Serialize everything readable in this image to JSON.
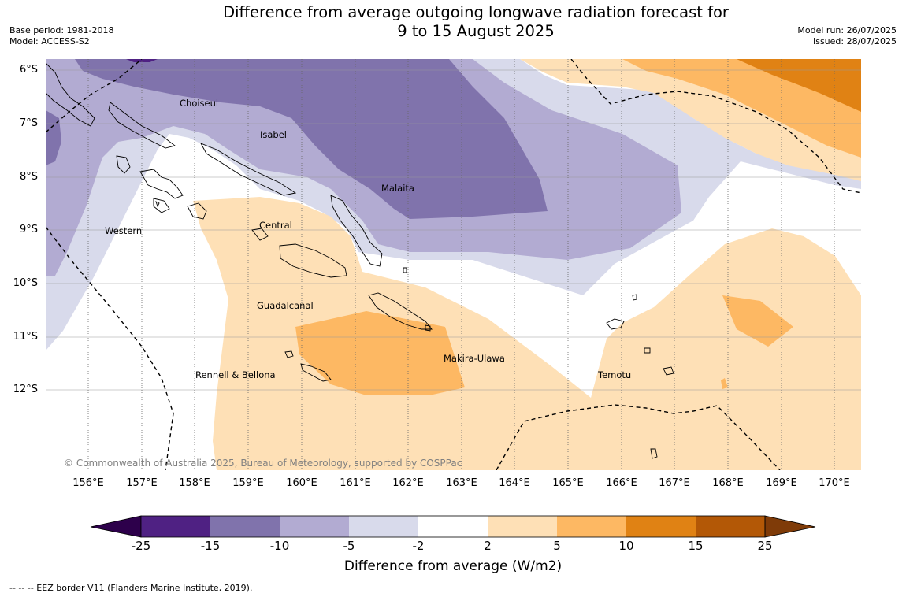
{
  "title_line1": "Difference from average outgoing longwave radiation forecast for",
  "title_line2": "9 to 15 August 2025",
  "meta_left": [
    "Base period: 1981-2018",
    "Model: ACCESS-S2"
  ],
  "meta_right": [
    "Model run: 26/07/2025",
    "Issued: 28/07/2025"
  ],
  "lat_labels": [
    "6°S",
    "7°S",
    "8°S",
    "9°S",
    "10°S",
    "11°S",
    "12°S"
  ],
  "lon_labels": [
    "156°E",
    "157°E",
    "158°E",
    "159°E",
    "160°E",
    "161°E",
    "162°E",
    "163°E",
    "164°E",
    "165°E",
    "166°E",
    "167°E",
    "168°E",
    "169°E",
    "170°E"
  ],
  "places": {
    "choiseul": "Choiseul",
    "isabel": "Isabel",
    "malaita": "Malaita",
    "western": "Western",
    "central": "Central",
    "guadalcanal": "Guadalcanal",
    "makira": "Makira-Ulawa",
    "rennell": "Rennell & Bellona",
    "temotu": "Temotu"
  },
  "copyright": "© Commonwealth of Australia 2025, Bureau of Meteorology, supported by COSPPac",
  "colorbar": {
    "title": "Difference from average (W/m2)",
    "ticks": [
      "-25",
      "-15",
      "-10",
      "-5",
      "-2",
      "2",
      "5",
      "10",
      "15",
      "25"
    ],
    "colors": [
      "#4f2183",
      "#8073ac",
      "#b2abd2",
      "#d8daeb",
      "#ffffff",
      "#fee0b6",
      "#fdb863",
      "#e08214",
      "#b35806"
    ],
    "under_color": "#2d004b",
    "over_color": "#7f3b08"
  },
  "footnote": "--  --  -- EEZ border V11 (Flanders Marine Institute, 2019)."
}
